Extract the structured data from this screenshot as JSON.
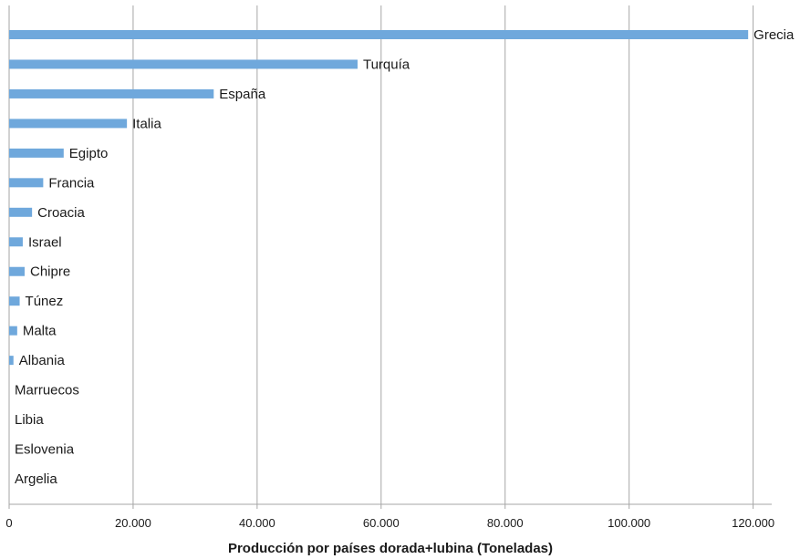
{
  "chart_data": {
    "type": "bar",
    "orientation": "horizontal",
    "categories": [
      "Grecia",
      "Turquía",
      "España",
      "Italia",
      "Egipto",
      "Francia",
      "Croacia",
      "Israel",
      "Chipre",
      "Túnez",
      "Malta",
      "Albania",
      "Marruecos",
      "Libia",
      "Eslovenia",
      "Argelia"
    ],
    "values": [
      119200,
      56200,
      33000,
      19000,
      8800,
      5500,
      3700,
      2200,
      2500,
      1700,
      1300,
      700,
      0,
      0,
      0,
      0
    ],
    "xlabel": "Producción por países dorada+lubina (Toneladas)",
    "ylabel": "",
    "xlim": [
      0,
      123000
    ],
    "xticks": [
      0,
      20000,
      40000,
      60000,
      80000,
      100000,
      120000
    ],
    "xtick_labels": [
      "0",
      "20.000",
      "40.000",
      "60.000",
      "80.000",
      "100.000",
      "120.000"
    ],
    "grid": "vertical",
    "legend": "none",
    "bar_color": "#6fa8dc"
  }
}
